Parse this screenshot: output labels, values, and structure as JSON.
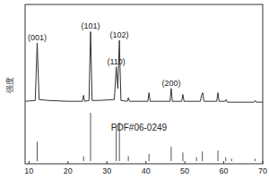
{
  "chart_data": [
    {
      "type": "line",
      "ylabel": "强度",
      "color": "#333333",
      "xlim": [
        9,
        70
      ],
      "ylim": [
        0,
        100
      ],
      "tick_labels": false,
      "x": [
        9,
        11.6,
        12.1,
        12.6,
        15,
        20,
        23.7,
        24.0,
        24.3,
        25.4,
        25.8,
        26.2,
        28,
        31.9,
        32.4,
        32.8,
        33.2,
        33.6,
        35.2,
        35.5,
        35.8,
        40.5,
        40.8,
        41.1,
        46.2,
        46.5,
        46.8,
        49.2,
        49.5,
        49.8,
        54.0,
        54.3,
        54.6,
        54.9,
        58.2,
        58.5,
        58.8,
        60.3,
        60.6,
        60.9,
        67.8,
        68.1,
        68.4,
        70
      ],
      "values": [
        5,
        6,
        73,
        7,
        6,
        5,
        5,
        12,
        5,
        6,
        86,
        6,
        6,
        7,
        45,
        20,
        76,
        6,
        5,
        9,
        5,
        5,
        15,
        5,
        5,
        20,
        5,
        5,
        13,
        5,
        5,
        12,
        15,
        5,
        5,
        15,
        5,
        5,
        7,
        4,
        4,
        6,
        4,
        4
      ],
      "annotations": [
        {
          "text": "(001)",
          "x": 12.1,
          "y": 73
        },
        {
          "text": "(101)",
          "x": 25.8,
          "y": 86
        },
        {
          "text": "(110)",
          "x": 32.4,
          "y": 45
        },
        {
          "text": "(102)",
          "x": 33.2,
          "y": 76
        },
        {
          "text": "(200)",
          "x": 46.5,
          "y": 20
        }
      ]
    },
    {
      "type": "bar",
      "label": "PDF#06-0249",
      "color": "#555555",
      "xlim": [
        9,
        70
      ],
      "ylim": [
        0,
        100
      ],
      "xticks": [
        10,
        20,
        30,
        40,
        50,
        60,
        70
      ],
      "tick_labels": "x",
      "x": [
        12.1,
        24.0,
        25.8,
        32.4,
        33.2,
        35.5,
        40.8,
        46.5,
        49.5,
        53.0,
        54.5,
        58.5,
        60.5,
        62.0,
        68.0
      ],
      "values": [
        40,
        10,
        100,
        72,
        80,
        10,
        15,
        30,
        18,
        8,
        20,
        22,
        8,
        5,
        5
      ]
    }
  ]
}
